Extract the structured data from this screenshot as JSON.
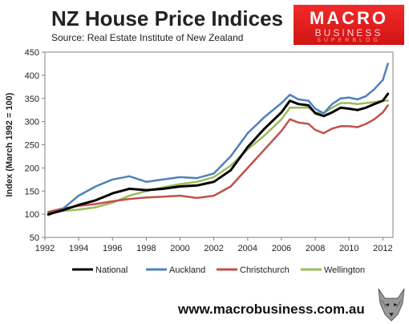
{
  "header": {
    "title": "NZ House Price Indices",
    "subtitle": "Source: Real Estate Institute of New Zealand"
  },
  "logo": {
    "line1": "MACRO",
    "line2": "BUSINESS",
    "line3": "SUPERBLOG"
  },
  "footer": {
    "url": "www.macrobusiness.com.au",
    "mascot_icon": "wolf-icon"
  },
  "chart_data": {
    "type": "line",
    "title": "NZ House Price Indices",
    "subtitle": "Source: Real Estate Institute of New Zealand",
    "xlabel": "",
    "ylabel": "Index (March 1992 = 100)",
    "xlim": [
      1992,
      2012.6
    ],
    "ylim": [
      50,
      450
    ],
    "xticks": [
      1992,
      1994,
      1996,
      1998,
      2000,
      2002,
      2004,
      2006,
      2008,
      2010,
      2012
    ],
    "yticks": [
      50,
      100,
      150,
      200,
      250,
      300,
      350,
      400,
      450
    ],
    "grid": false,
    "legend_position": "bottom",
    "x": [
      1992.2,
      1993,
      1994,
      1995,
      1996,
      1997,
      1998,
      1999,
      2000,
      2001,
      2002,
      2003,
      2004,
      2005,
      2006,
      2006.5,
      2007,
      2007.6,
      2008,
      2008.5,
      2009,
      2009.5,
      2010,
      2010.5,
      2011,
      2011.5,
      2012,
      2012.3
    ],
    "series": [
      {
        "name": "National",
        "color": "#000000",
        "values": [
          100,
          108,
          120,
          130,
          145,
          155,
          152,
          155,
          160,
          162,
          170,
          195,
          245,
          285,
          320,
          345,
          338,
          335,
          318,
          312,
          320,
          330,
          328,
          325,
          330,
          338,
          345,
          360
        ]
      },
      {
        "name": "Auckland",
        "color": "#4f81bd",
        "values": [
          98,
          110,
          140,
          160,
          175,
          182,
          170,
          175,
          180,
          178,
          188,
          225,
          275,
          310,
          340,
          358,
          348,
          345,
          328,
          318,
          338,
          350,
          352,
          348,
          355,
          370,
          390,
          425
        ]
      },
      {
        "name": "Christchurch",
        "color": "#c0504d",
        "values": [
          105,
          112,
          118,
          122,
          128,
          133,
          136,
          138,
          140,
          135,
          140,
          160,
          200,
          240,
          280,
          305,
          298,
          295,
          282,
          275,
          285,
          290,
          290,
          288,
          295,
          305,
          320,
          335
        ]
      },
      {
        "name": "Wellington",
        "color": "#9bbb59",
        "values": [
          105,
          107,
          110,
          115,
          125,
          140,
          150,
          158,
          165,
          170,
          180,
          205,
          240,
          270,
          305,
          330,
          330,
          330,
          320,
          318,
          330,
          340,
          340,
          338,
          340,
          342,
          345,
          345
        ]
      }
    ]
  }
}
